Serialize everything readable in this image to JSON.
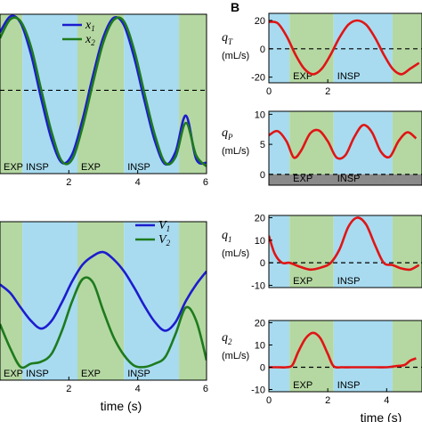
{
  "panel_letter": "B",
  "colors": {
    "insp_band": "#a8dbf0",
    "exp_band": "#b5d8a2",
    "line_blue": "#1c1ccf",
    "line_green": "#1e7a1e",
    "line_red": "#e01515",
    "gray_band": "#8a8a8a"
  },
  "chart_data": [
    {
      "id": "left-top",
      "type": "line",
      "xlim": [
        0,
        6
      ],
      "ylim": [
        -1.15,
        1.05
      ],
      "xticks": [
        "2",
        "4",
        "6"
      ],
      "xtick_values": [
        2,
        4,
        6
      ],
      "phases": [
        {
          "label": "EXP",
          "x0": 0,
          "x1": 0.65,
          "kind": "exp"
        },
        {
          "label": "INSP",
          "x0": 0.65,
          "x1": 2.25,
          "kind": "insp"
        },
        {
          "label": "EXP",
          "x0": 2.25,
          "x1": 3.6,
          "kind": "exp"
        },
        {
          "label": "INSP",
          "x0": 3.6,
          "x1": 5.2,
          "kind": "insp"
        },
        {
          "label": "",
          "x0": 5.2,
          "x1": 6,
          "kind": "exp"
        }
      ],
      "zero_line": 0,
      "legend": [
        "x",
        "x"
      ],
      "legend_subs": [
        "1",
        "2"
      ],
      "series": [
        {
          "name": "x1",
          "color": "blue",
          "x": [
            0,
            0.3,
            0.6,
            0.9,
            1.2,
            1.5,
            1.8,
            2.1,
            2.4,
            2.7,
            3.0,
            3.3,
            3.6,
            3.9,
            4.2,
            4.5,
            4.8,
            5.1,
            5.4,
            5.7,
            6.0
          ],
          "y": [
            0.8,
            1.02,
            0.93,
            0.5,
            -0.12,
            -0.68,
            -1.0,
            -0.88,
            -0.4,
            0.2,
            0.73,
            1.0,
            0.9,
            0.45,
            -0.15,
            -0.7,
            -1.02,
            -0.85,
            -0.35,
            -0.95,
            -1.0
          ]
        },
        {
          "name": "x2",
          "color": "green",
          "x": [
            0,
            0.3,
            0.6,
            0.9,
            1.2,
            1.5,
            1.8,
            2.1,
            2.4,
            2.7,
            3.0,
            3.3,
            3.6,
            3.9,
            4.2,
            4.5,
            4.8,
            5.1,
            5.4,
            5.7,
            6.0
          ],
          "y": [
            0.72,
            0.98,
            0.95,
            0.6,
            0.0,
            -0.58,
            -0.98,
            -0.95,
            -0.5,
            0.1,
            0.66,
            0.97,
            0.95,
            0.55,
            -0.05,
            -0.62,
            -1.0,
            -0.92,
            -0.45,
            -0.9,
            -1.05
          ]
        }
      ]
    },
    {
      "id": "left-bottom",
      "type": "line",
      "xlim": [
        0,
        6
      ],
      "ylim": [
        -1.2,
        1.2
      ],
      "xticks": [
        "2",
        "4",
        "6"
      ],
      "xtick_values": [
        2,
        4,
        6
      ],
      "xlabel": "time (s)",
      "phases": [
        {
          "label": "EXP",
          "x0": 0,
          "x1": 0.65,
          "kind": "exp"
        },
        {
          "label": "INSP",
          "x0": 0.65,
          "x1": 2.25,
          "kind": "insp"
        },
        {
          "label": "EXP",
          "x0": 2.25,
          "x1": 3.6,
          "kind": "exp"
        },
        {
          "label": "INSP",
          "x0": 3.6,
          "x1": 5.2,
          "kind": "insp"
        },
        {
          "label": "",
          "x0": 5.2,
          "x1": 6,
          "kind": "exp"
        }
      ],
      "legend": [
        "V",
        "V"
      ],
      "legend_subs": [
        "1",
        "2"
      ],
      "series": [
        {
          "name": "V1",
          "color": "blue",
          "x": [
            0,
            0.3,
            0.6,
            0.9,
            1.2,
            1.5,
            1.8,
            2.1,
            2.4,
            2.7,
            3.0,
            3.3,
            3.6,
            3.9,
            4.2,
            4.5,
            4.8,
            5.1,
            5.4,
            5.7,
            6.0
          ],
          "y": [
            0.25,
            0.12,
            -0.1,
            -0.3,
            -0.42,
            -0.3,
            -0.02,
            0.3,
            0.55,
            0.68,
            0.74,
            0.63,
            0.45,
            0.2,
            -0.08,
            -0.32,
            -0.45,
            -0.32,
            0.0,
            0.25,
            0.45
          ]
        },
        {
          "name": "V2",
          "color": "green",
          "x": [
            0,
            0.3,
            0.6,
            0.9,
            1.2,
            1.5,
            1.8,
            2.1,
            2.4,
            2.7,
            3.0,
            3.3,
            3.6,
            3.9,
            4.2,
            4.5,
            4.8,
            5.1,
            5.4,
            5.7,
            6.0
          ],
          "y": [
            -0.35,
            -0.72,
            -1.0,
            -0.95,
            -0.92,
            -0.8,
            -0.45,
            0.0,
            0.33,
            0.28,
            -0.15,
            -0.55,
            -0.82,
            -0.98,
            -1.0,
            -0.95,
            -0.85,
            -0.5,
            -0.1,
            -0.3,
            -0.9
          ]
        }
      ]
    },
    {
      "id": "right-qT",
      "type": "line",
      "label": "q",
      "label_sub": "T",
      "unit": "(mL/s)",
      "xlim": [
        0,
        5.2
      ],
      "ylim": [
        -24,
        25
      ],
      "yticks": [
        20,
        0,
        -20
      ],
      "xticks": [
        "0",
        "2"
      ],
      "xtick_values": [
        0,
        2
      ],
      "zero_line": 0,
      "phases": [
        {
          "label": "",
          "x0": 0,
          "x1": 0.7,
          "kind": "insp"
        },
        {
          "label": "EXP",
          "x0": 0.7,
          "x1": 2.2,
          "kind": "exp"
        },
        {
          "label": "INSP",
          "x0": 2.2,
          "x1": 4.2,
          "kind": "insp"
        },
        {
          "label": "",
          "x0": 4.2,
          "x1": 5.2,
          "kind": "exp"
        }
      ],
      "series": [
        {
          "name": "",
          "color": "red",
          "x": [
            0,
            0.3,
            0.6,
            0.9,
            1.2,
            1.5,
            1.8,
            2.1,
            2.4,
            2.7,
            3.0,
            3.3,
            3.6,
            3.9,
            4.2,
            4.5,
            4.8,
            5.1
          ],
          "y": [
            19,
            18,
            9,
            -4,
            -14,
            -18,
            -14,
            -4,
            8,
            17,
            20,
            17,
            8,
            -4,
            -14,
            -18,
            -14,
            -10
          ]
        }
      ]
    },
    {
      "id": "right-qP",
      "type": "line",
      "label": "q",
      "label_sub": "P",
      "unit": "(mL/s)",
      "xlim": [
        0,
        5.2
      ],
      "ylim": [
        -1.8,
        10.5
      ],
      "yticks": [
        10,
        5,
        0
      ],
      "zero_line": 0,
      "gray_band": [
        -1.8,
        0
      ],
      "phases": [
        {
          "label": "",
          "x0": 0,
          "x1": 0.7,
          "kind": "insp"
        },
        {
          "label": "EXP",
          "x0": 0.7,
          "x1": 2.2,
          "kind": "exp"
        },
        {
          "label": "INSP",
          "x0": 2.2,
          "x1": 4.2,
          "kind": "insp"
        },
        {
          "label": "",
          "x0": 4.2,
          "x1": 5.2,
          "kind": "exp"
        }
      ],
      "series": [
        {
          "name": "",
          "color": "red",
          "x": [
            0,
            0.3,
            0.6,
            0.85,
            1.1,
            1.4,
            1.7,
            2.0,
            2.3,
            2.6,
            2.9,
            3.2,
            3.5,
            3.8,
            4.1,
            4.4,
            4.7,
            5.0
          ],
          "y": [
            6.5,
            7.2,
            5.5,
            2.8,
            4.0,
            6.8,
            7.3,
            5.5,
            2.8,
            3.2,
            6.2,
            8.2,
            7.0,
            3.8,
            2.9,
            5.5,
            7.0,
            6.0
          ]
        }
      ]
    },
    {
      "id": "right-q1",
      "type": "line",
      "label": "q",
      "label_sub": "1",
      "unit": "(mL/s)",
      "xlim": [
        0,
        5.2
      ],
      "ylim": [
        -11,
        21
      ],
      "yticks": [
        20,
        10,
        0,
        -10
      ],
      "zero_line": 0,
      "phases": [
        {
          "label": "",
          "x0": 0,
          "x1": 0.7,
          "kind": "insp"
        },
        {
          "label": "EXP",
          "x0": 0.7,
          "x1": 2.2,
          "kind": "exp"
        },
        {
          "label": "INSP",
          "x0": 2.2,
          "x1": 4.2,
          "kind": "insp"
        },
        {
          "label": "",
          "x0": 4.2,
          "x1": 5.2,
          "kind": "exp"
        }
      ],
      "series": [
        {
          "name": "",
          "color": "red",
          "x": [
            0,
            0.2,
            0.45,
            0.7,
            1.0,
            1.4,
            1.8,
            2.1,
            2.4,
            2.7,
            3.0,
            3.3,
            3.6,
            3.9,
            4.2,
            4.5,
            4.8,
            5.1
          ],
          "y": [
            12,
            4,
            0,
            0,
            -1.5,
            -3,
            -2,
            0,
            6,
            16,
            20,
            17,
            8,
            0,
            -1,
            -2.5,
            -3,
            -1
          ]
        }
      ]
    },
    {
      "id": "right-q2",
      "type": "line",
      "label": "q",
      "label_sub": "2",
      "unit": "(mL/s)",
      "xlim": [
        0,
        5.2
      ],
      "ylim": [
        -11,
        21
      ],
      "yticks": [
        20,
        10,
        0,
        -10
      ],
      "xticks": [
        "0",
        "2",
        "4"
      ],
      "xtick_values": [
        0,
        2,
        4
      ],
      "xlabel": "time (s)",
      "zero_line": 0,
      "phases": [
        {
          "label": "",
          "x0": 0,
          "x1": 0.7,
          "kind": "insp"
        },
        {
          "label": "EXP",
          "x0": 0.7,
          "x1": 2.2,
          "kind": "exp"
        },
        {
          "label": "INSP",
          "x0": 2.2,
          "x1": 4.2,
          "kind": "insp"
        },
        {
          "label": "",
          "x0": 4.2,
          "x1": 5.2,
          "kind": "exp"
        }
      ],
      "series": [
        {
          "name": "",
          "color": "red",
          "x": [
            0,
            0.3,
            0.6,
            0.8,
            1.0,
            1.25,
            1.5,
            1.75,
            2.0,
            2.2,
            2.5,
            2.8,
            3.2,
            3.6,
            4.0,
            4.3,
            4.6,
            4.8,
            5.0
          ],
          "y": [
            0,
            0,
            0,
            1,
            7,
            13,
            15.5,
            13,
            6,
            0.5,
            0,
            0,
            0,
            0,
            0,
            0.5,
            1,
            3,
            4
          ]
        }
      ]
    }
  ]
}
